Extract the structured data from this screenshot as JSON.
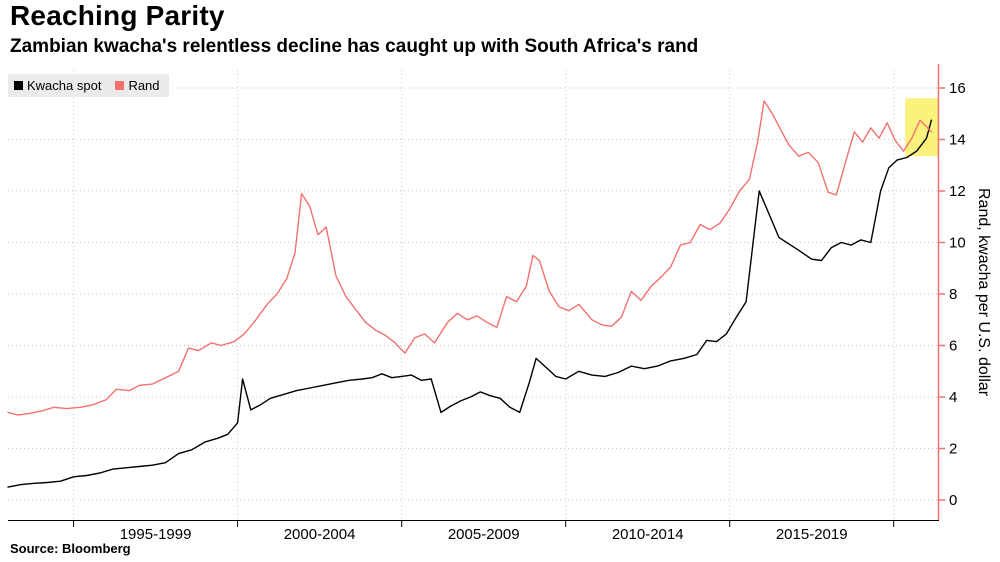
{
  "header": {
    "title": "Reaching Parity",
    "subtitle": "Zambian kwacha's relentless decline has caught up with South Africa's rand"
  },
  "source": {
    "label": "Source: Bloomberg"
  },
  "chart_data": {
    "type": "line",
    "title": "Reaching Parity",
    "subtitle": "Zambian kwacha's relentless decline has caught up with South Africa's rand",
    "xlabel": "",
    "ylabel": "Rand, kwacha per U.S. dollar",
    "xlim": [
      1993,
      2021.35
    ],
    "ylim": [
      0,
      16
    ],
    "y_ticks": [
      0,
      2,
      4,
      6,
      8,
      10,
      12,
      14,
      16
    ],
    "x_gridlines": [
      1995,
      2000,
      2005,
      2010,
      2015,
      2020
    ],
    "x_band_labels": [
      {
        "label": "1995-1999",
        "center": 1997.5
      },
      {
        "label": "2000-2004",
        "center": 2002.5
      },
      {
        "label": "2005-2009",
        "center": 2007.5
      },
      {
        "label": "2010-2014",
        "center": 2012.5
      },
      {
        "label": "2015-2019",
        "center": 2017.5
      }
    ],
    "grid": "dotted",
    "legend_position": "top-left",
    "axis_color": "#f4716e",
    "highlight": {
      "x0": 2020.35,
      "x1": 2021.35,
      "y0": 13.35,
      "y1": 15.6,
      "color": "#fbf170"
    },
    "series": [
      {
        "name": "Kwacha spot",
        "color": "#000000",
        "points": [
          [
            1993.0,
            0.5
          ],
          [
            1993.4,
            0.6
          ],
          [
            1993.8,
            0.65
          ],
          [
            1994.2,
            0.68
          ],
          [
            1994.6,
            0.73
          ],
          [
            1995.0,
            0.9
          ],
          [
            1995.4,
            0.95
          ],
          [
            1995.8,
            1.05
          ],
          [
            1996.2,
            1.2
          ],
          [
            1996.6,
            1.25
          ],
          [
            1997.0,
            1.3
          ],
          [
            1997.4,
            1.35
          ],
          [
            1997.8,
            1.45
          ],
          [
            1998.2,
            1.8
          ],
          [
            1998.6,
            1.95
          ],
          [
            1999.0,
            2.25
          ],
          [
            1999.4,
            2.4
          ],
          [
            1999.7,
            2.55
          ],
          [
            2000.0,
            3.0
          ],
          [
            2000.15,
            4.7
          ],
          [
            2000.4,
            3.5
          ],
          [
            2000.7,
            3.7
          ],
          [
            2001.0,
            3.95
          ],
          [
            2001.4,
            4.1
          ],
          [
            2001.8,
            4.25
          ],
          [
            2002.2,
            4.35
          ],
          [
            2002.6,
            4.45
          ],
          [
            2003.0,
            4.55
          ],
          [
            2003.4,
            4.65
          ],
          [
            2003.8,
            4.7
          ],
          [
            2004.1,
            4.75
          ],
          [
            2004.4,
            4.9
          ],
          [
            2004.7,
            4.75
          ],
          [
            2005.0,
            4.8
          ],
          [
            2005.3,
            4.85
          ],
          [
            2005.6,
            4.65
          ],
          [
            2005.9,
            4.7
          ],
          [
            2006.2,
            3.4
          ],
          [
            2006.5,
            3.65
          ],
          [
            2006.8,
            3.85
          ],
          [
            2007.1,
            4.0
          ],
          [
            2007.4,
            4.2
          ],
          [
            2007.7,
            4.05
          ],
          [
            2008.0,
            3.95
          ],
          [
            2008.3,
            3.6
          ],
          [
            2008.6,
            3.4
          ],
          [
            2008.9,
            4.6
          ],
          [
            2009.1,
            5.5
          ],
          [
            2009.4,
            5.15
          ],
          [
            2009.7,
            4.8
          ],
          [
            2010.0,
            4.7
          ],
          [
            2010.4,
            5.0
          ],
          [
            2010.8,
            4.85
          ],
          [
            2011.2,
            4.8
          ],
          [
            2011.6,
            4.95
          ],
          [
            2012.0,
            5.2
          ],
          [
            2012.4,
            5.1
          ],
          [
            2012.8,
            5.2
          ],
          [
            2013.2,
            5.4
          ],
          [
            2013.6,
            5.5
          ],
          [
            2014.0,
            5.65
          ],
          [
            2014.3,
            6.2
          ],
          [
            2014.6,
            6.15
          ],
          [
            2014.9,
            6.45
          ],
          [
            2015.2,
            7.1
          ],
          [
            2015.5,
            7.7
          ],
          [
            2015.9,
            12.0
          ],
          [
            2016.2,
            11.1
          ],
          [
            2016.5,
            10.2
          ],
          [
            2016.8,
            9.95
          ],
          [
            2017.1,
            9.7
          ],
          [
            2017.5,
            9.35
          ],
          [
            2017.8,
            9.3
          ],
          [
            2018.1,
            9.8
          ],
          [
            2018.4,
            10.0
          ],
          [
            2018.7,
            9.9
          ],
          [
            2019.0,
            10.1
          ],
          [
            2019.3,
            10.0
          ],
          [
            2019.6,
            12.0
          ],
          [
            2019.85,
            12.9
          ],
          [
            2020.1,
            13.2
          ],
          [
            2020.4,
            13.3
          ],
          [
            2020.7,
            13.55
          ],
          [
            2021.0,
            14.05
          ],
          [
            2021.15,
            14.75
          ]
        ]
      },
      {
        "name": "Rand",
        "color": "#f4716e",
        "points": [
          [
            1993.0,
            3.4
          ],
          [
            1993.3,
            3.3
          ],
          [
            1993.6,
            3.35
          ],
          [
            1994.0,
            3.45
          ],
          [
            1994.4,
            3.6
          ],
          [
            1994.8,
            3.55
          ],
          [
            1995.2,
            3.6
          ],
          [
            1995.6,
            3.7
          ],
          [
            1996.0,
            3.9
          ],
          [
            1996.3,
            4.3
          ],
          [
            1996.7,
            4.25
          ],
          [
            1997.0,
            4.45
          ],
          [
            1997.4,
            4.5
          ],
          [
            1997.8,
            4.75
          ],
          [
            1998.2,
            5.0
          ],
          [
            1998.5,
            5.9
          ],
          [
            1998.8,
            5.8
          ],
          [
            1999.2,
            6.1
          ],
          [
            1999.5,
            6.0
          ],
          [
            1999.9,
            6.15
          ],
          [
            2000.2,
            6.45
          ],
          [
            2000.5,
            6.9
          ],
          [
            2000.9,
            7.6
          ],
          [
            2001.2,
            8.0
          ],
          [
            2001.5,
            8.6
          ],
          [
            2001.75,
            9.6
          ],
          [
            2001.95,
            11.9
          ],
          [
            2002.2,
            11.4
          ],
          [
            2002.45,
            10.3
          ],
          [
            2002.7,
            10.6
          ],
          [
            2003.0,
            8.7
          ],
          [
            2003.3,
            7.9
          ],
          [
            2003.6,
            7.4
          ],
          [
            2003.9,
            6.9
          ],
          [
            2004.2,
            6.6
          ],
          [
            2004.5,
            6.4
          ],
          [
            2004.8,
            6.1
          ],
          [
            2005.1,
            5.7
          ],
          [
            2005.4,
            6.3
          ],
          [
            2005.7,
            6.45
          ],
          [
            2006.0,
            6.1
          ],
          [
            2006.4,
            6.9
          ],
          [
            2006.7,
            7.25
          ],
          [
            2007.0,
            7.0
          ],
          [
            2007.3,
            7.15
          ],
          [
            2007.6,
            6.9
          ],
          [
            2007.9,
            6.7
          ],
          [
            2008.2,
            7.9
          ],
          [
            2008.5,
            7.7
          ],
          [
            2008.8,
            8.3
          ],
          [
            2009.0,
            9.5
          ],
          [
            2009.2,
            9.3
          ],
          [
            2009.5,
            8.1
          ],
          [
            2009.8,
            7.5
          ],
          [
            2010.1,
            7.35
          ],
          [
            2010.4,
            7.6
          ],
          [
            2010.8,
            7.0
          ],
          [
            2011.1,
            6.8
          ],
          [
            2011.4,
            6.75
          ],
          [
            2011.7,
            7.1
          ],
          [
            2012.0,
            8.1
          ],
          [
            2012.3,
            7.75
          ],
          [
            2012.6,
            8.3
          ],
          [
            2012.9,
            8.65
          ],
          [
            2013.2,
            9.05
          ],
          [
            2013.5,
            9.9
          ],
          [
            2013.8,
            10.0
          ],
          [
            2014.1,
            10.7
          ],
          [
            2014.4,
            10.5
          ],
          [
            2014.7,
            10.75
          ],
          [
            2015.0,
            11.3
          ],
          [
            2015.3,
            12.0
          ],
          [
            2015.6,
            12.45
          ],
          [
            2015.85,
            13.9
          ],
          [
            2016.05,
            15.5
          ],
          [
            2016.3,
            15.0
          ],
          [
            2016.55,
            14.4
          ],
          [
            2016.8,
            13.8
          ],
          [
            2017.1,
            13.35
          ],
          [
            2017.4,
            13.5
          ],
          [
            2017.7,
            13.1
          ],
          [
            2018.0,
            11.95
          ],
          [
            2018.25,
            11.85
          ],
          [
            2018.55,
            13.2
          ],
          [
            2018.8,
            14.3
          ],
          [
            2019.05,
            13.9
          ],
          [
            2019.3,
            14.45
          ],
          [
            2019.55,
            14.05
          ],
          [
            2019.8,
            14.65
          ],
          [
            2020.05,
            13.95
          ],
          [
            2020.3,
            13.55
          ],
          [
            2020.55,
            14.05
          ],
          [
            2020.8,
            14.75
          ],
          [
            2021.15,
            14.3
          ]
        ]
      }
    ]
  }
}
